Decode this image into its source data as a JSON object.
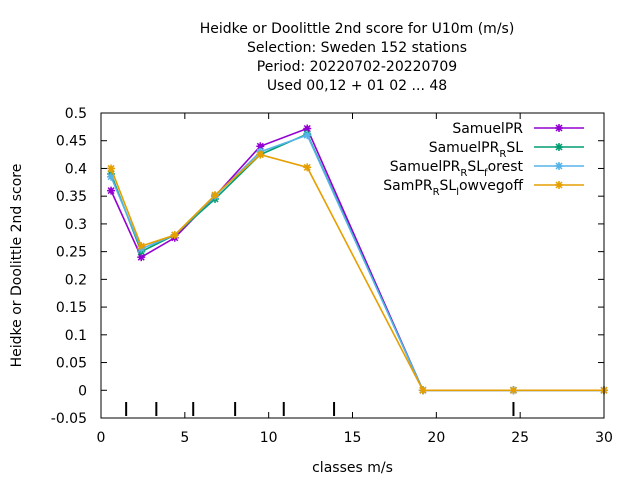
{
  "chart_data": {
    "type": "line",
    "title_lines": [
      "Heidke or Doolittle 2nd score  for U10m (m/s)",
      "Selection: Sweden    152 stations",
      "Period: 20220702-20220709",
      "Used  00,12  + 01 02 ... 48"
    ],
    "xlabel": "classes m/s",
    "ylabel": "Heidke or Doolittle 2nd score",
    "xlim": [
      0,
      30
    ],
    "ylim": [
      -0.05,
      0.5
    ],
    "xticks": [
      0,
      5,
      10,
      15,
      20,
      25,
      30
    ],
    "yticks": [
      -0.05,
      0,
      0.05,
      0.1,
      0.15,
      0.2,
      0.25,
      0.3,
      0.35,
      0.4,
      0.45,
      0.5
    ],
    "ytick_labels": [
      "-0.05",
      "0",
      "0.05",
      "0.1",
      "0.15",
      "0.2",
      "0.25",
      "0.3",
      "0.35",
      "0.4",
      "0.45",
      "0.5"
    ],
    "class_marks": [
      1.5,
      3.3,
      5.5,
      8.0,
      10.9,
      13.9,
      24.6
    ],
    "grid": false,
    "legend_position": "top-right",
    "series": [
      {
        "legend": [
          "SamuelPR"
        ],
        "color": "#9400d3",
        "x": [
          0.6,
          2.4,
          4.4,
          6.8,
          9.5,
          12.3,
          19.2,
          24.6,
          30.0
        ],
        "y": [
          0.36,
          0.24,
          0.275,
          0.35,
          0.44,
          0.472,
          0.0,
          0.0,
          0.0
        ]
      },
      {
        "legend": [
          "SamuelPR",
          "R",
          "SL"
        ],
        "color": "#009e73",
        "x": [
          0.6,
          2.4,
          4.4,
          6.8,
          9.5,
          12.3,
          19.2,
          24.6,
          30.0
        ],
        "y": [
          0.39,
          0.25,
          0.28,
          0.345,
          0.425,
          0.462,
          0.0,
          0.0,
          0.0
        ]
      },
      {
        "legend": [
          "SamuelPR",
          "R",
          "SL",
          "f",
          "orest"
        ],
        "color": "#56b4e9",
        "x": [
          0.6,
          2.4,
          4.4,
          6.8,
          9.5,
          12.3,
          19.2,
          24.6,
          30.0
        ],
        "y": [
          0.385,
          0.255,
          0.28,
          0.35,
          0.43,
          0.46,
          0.0,
          0.0,
          0.0
        ]
      },
      {
        "legend": [
          "SamPR",
          "R",
          "SL",
          "l",
          "owvegoff"
        ],
        "color": "#e69f00",
        "x": [
          0.6,
          2.4,
          4.4,
          6.8,
          9.5,
          12.3,
          19.2,
          24.6,
          30.0
        ],
        "y": [
          0.4,
          0.26,
          0.28,
          0.352,
          0.425,
          0.402,
          0.0,
          0.0,
          0.0
        ]
      }
    ]
  }
}
